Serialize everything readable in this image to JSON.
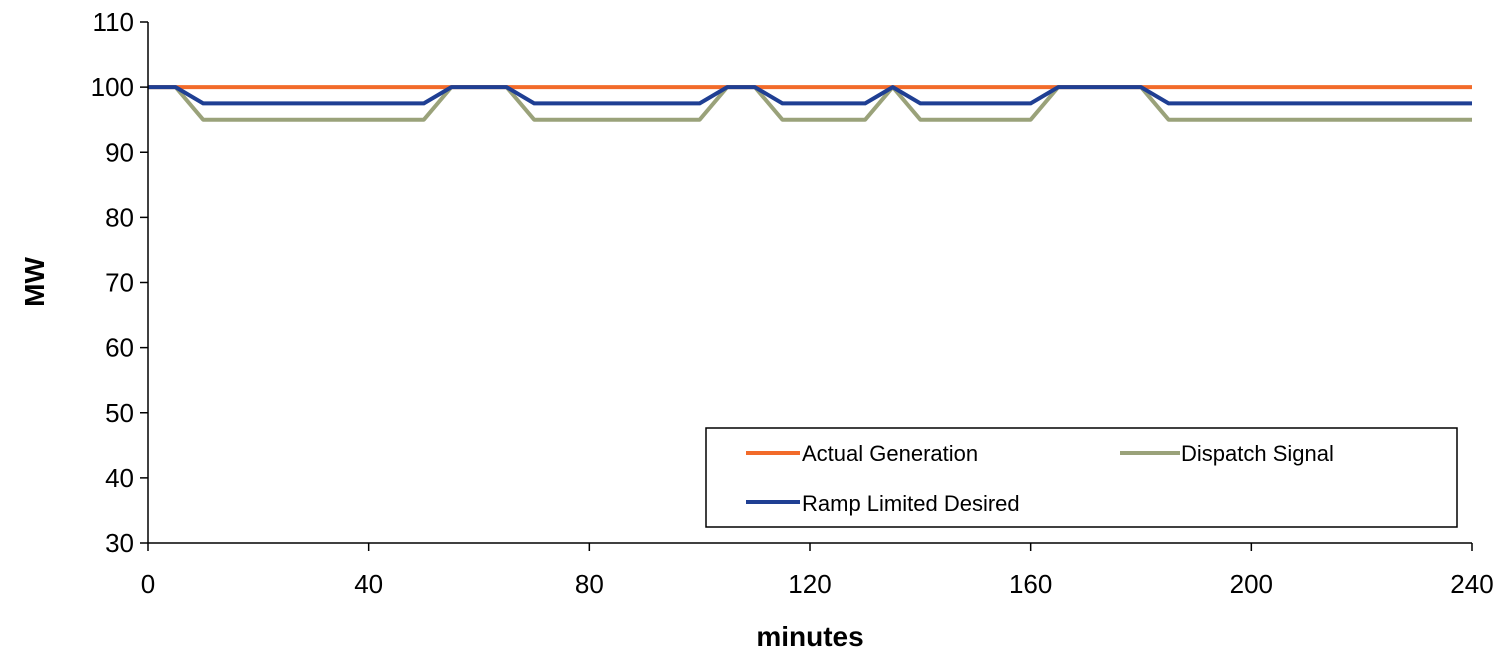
{
  "colors": {
    "actual_generation": "#F26B2A",
    "dispatch_signal": "#9AA27A",
    "ramp_limited_desired": "#1F3F93",
    "axis": "#000000",
    "background": "#FFFFFF"
  },
  "legend": {
    "position": "bottom-right",
    "items": [
      {
        "key": "actual_generation",
        "label": "Actual Generation"
      },
      {
        "key": "dispatch_signal",
        "label": "Dispatch Signal"
      },
      {
        "key": "ramp_limited_desired",
        "label": "Ramp Limited Desired"
      }
    ]
  },
  "chart_data": {
    "type": "line",
    "title": "",
    "xlabel": "minutes",
    "ylabel": "MW",
    "xlim": [
      0,
      240
    ],
    "ylim": [
      30,
      110
    ],
    "xticks": [
      0,
      40,
      80,
      120,
      160,
      200,
      240
    ],
    "yticks": [
      30,
      40,
      50,
      60,
      70,
      80,
      90,
      100,
      110
    ],
    "grid": false,
    "series": [
      {
        "name": "Actual Generation",
        "color": "#F26B2A",
        "points": [
          [
            0,
            100
          ],
          [
            240,
            100
          ]
        ]
      },
      {
        "name": "Dispatch Signal",
        "color": "#9AA27A",
        "points": [
          [
            0,
            100
          ],
          [
            5,
            100
          ],
          [
            10,
            95
          ],
          [
            50,
            95
          ],
          [
            55,
            100
          ],
          [
            65,
            100
          ],
          [
            70,
            95
          ],
          [
            100,
            95
          ],
          [
            105,
            100
          ],
          [
            110,
            100
          ],
          [
            115,
            95
          ],
          [
            130,
            95
          ],
          [
            135,
            100
          ],
          [
            140,
            95
          ],
          [
            160,
            95
          ],
          [
            165,
            100
          ],
          [
            180,
            100
          ],
          [
            185,
            95
          ],
          [
            240,
            95
          ]
        ]
      },
      {
        "name": "Ramp Limited Desired",
        "color": "#1F3F93",
        "points": [
          [
            0,
            100
          ],
          [
            5,
            100
          ],
          [
            10,
            97.5
          ],
          [
            50,
            97.5
          ],
          [
            55,
            100
          ],
          [
            65,
            100
          ],
          [
            70,
            97.5
          ],
          [
            100,
            97.5
          ],
          [
            105,
            100
          ],
          [
            110,
            100
          ],
          [
            115,
            97.5
          ],
          [
            130,
            97.5
          ],
          [
            135,
            100
          ],
          [
            140,
            97.5
          ],
          [
            160,
            97.5
          ],
          [
            165,
            100
          ],
          [
            180,
            100
          ],
          [
            185,
            97.5
          ],
          [
            240,
            97.5
          ]
        ]
      }
    ]
  }
}
